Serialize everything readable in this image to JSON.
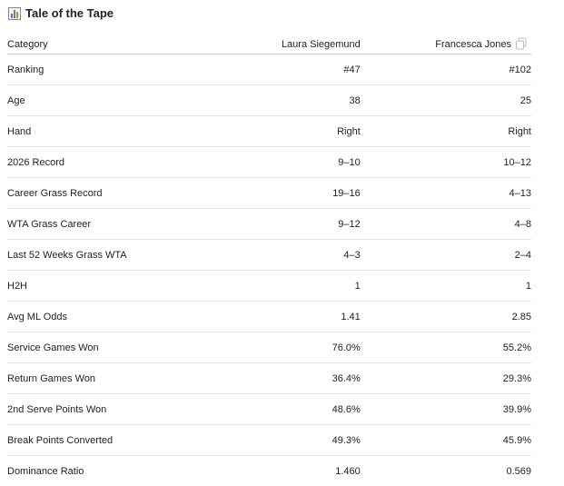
{
  "header": {
    "title": "Tale of the Tape"
  },
  "table": {
    "columns": [
      "Category",
      "Laura Siegemund",
      "Francesca Jones"
    ],
    "rows": [
      [
        "Ranking",
        "#47",
        "#102"
      ],
      [
        "Age",
        "38",
        "25"
      ],
      [
        "Hand",
        "Right",
        "Right"
      ],
      [
        "2026 Record",
        "9–10",
        "10–12"
      ],
      [
        "Career Grass Record",
        "19–16",
        "4–13"
      ],
      [
        "WTA Grass Career",
        "9–12",
        "4–8"
      ],
      [
        "Last 52 Weeks Grass WTA",
        "4–3",
        "2–4"
      ],
      [
        "H2H",
        "1",
        "1"
      ],
      [
        "Avg ML Odds",
        "1.41",
        "2.85"
      ],
      [
        "Service Games Won",
        "76.0%",
        "55.2%"
      ],
      [
        "Return Games Won",
        "36.4%",
        "29.3%"
      ],
      [
        "2nd Serve Points Won",
        "48.6%",
        "39.9%"
      ],
      [
        "Break Points Converted",
        "49.3%",
        "45.9%"
      ],
      [
        "Dominance Ratio",
        "1.460",
        "0.569"
      ]
    ]
  }
}
